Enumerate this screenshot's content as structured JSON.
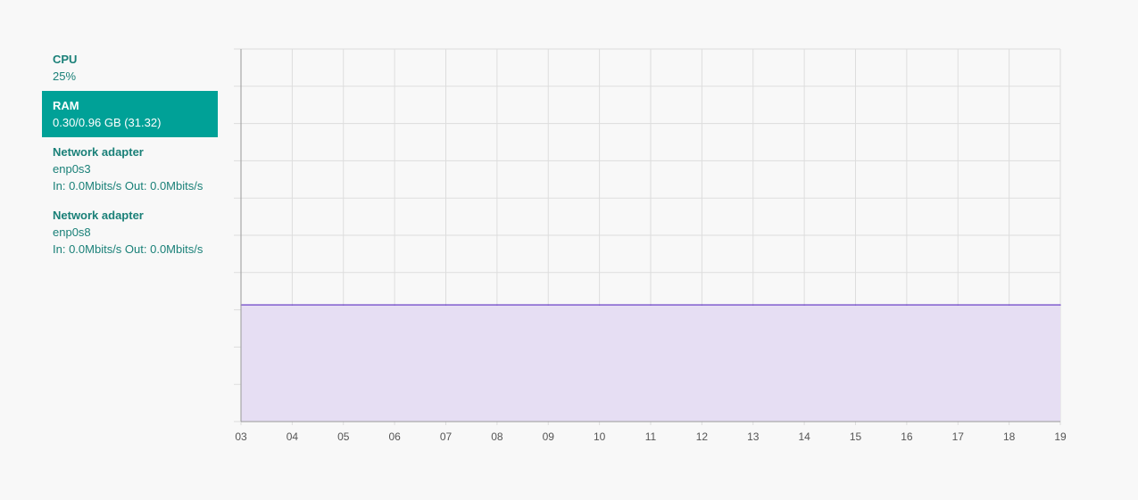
{
  "sidebar": {
    "items": [
      {
        "title": "CPU",
        "lines": [
          "25%"
        ],
        "active": false
      },
      {
        "title": "RAM",
        "lines": [
          "0.30/0.96 GB (31.32)"
        ],
        "active": true
      },
      {
        "title": "Network adapter",
        "lines": [
          "enp0s3",
          "In: 0.0Mbits/s Out: 0.0Mbits/s"
        ],
        "active": false
      },
      {
        "title": "Network adapter",
        "lines": [
          "enp0s8",
          "In: 0.0Mbits/s Out: 0.0Mbits/s"
        ],
        "active": false
      }
    ]
  },
  "colors": {
    "accent": "#00a197",
    "accent_text": "#1a8078",
    "series_line": "#5c2fc2",
    "series_fill": "#e6def3",
    "grid": "#dddddd"
  },
  "chart_data": {
    "type": "area",
    "x": [
      "03",
      "04",
      "05",
      "06",
      "07",
      "08",
      "09",
      "10",
      "11",
      "12",
      "13",
      "14",
      "15",
      "16",
      "17",
      "18",
      "19"
    ],
    "y": [
      31.32,
      31.32,
      31.32,
      31.32,
      31.32,
      31.32,
      31.32,
      31.32,
      31.32,
      31.32,
      31.32,
      31.32,
      31.32,
      31.32,
      31.32,
      31.32,
      31.32
    ],
    "ylim": [
      0,
      100
    ],
    "title": "",
    "xlabel": "",
    "ylabel": "",
    "grid": true,
    "legend": "none"
  }
}
